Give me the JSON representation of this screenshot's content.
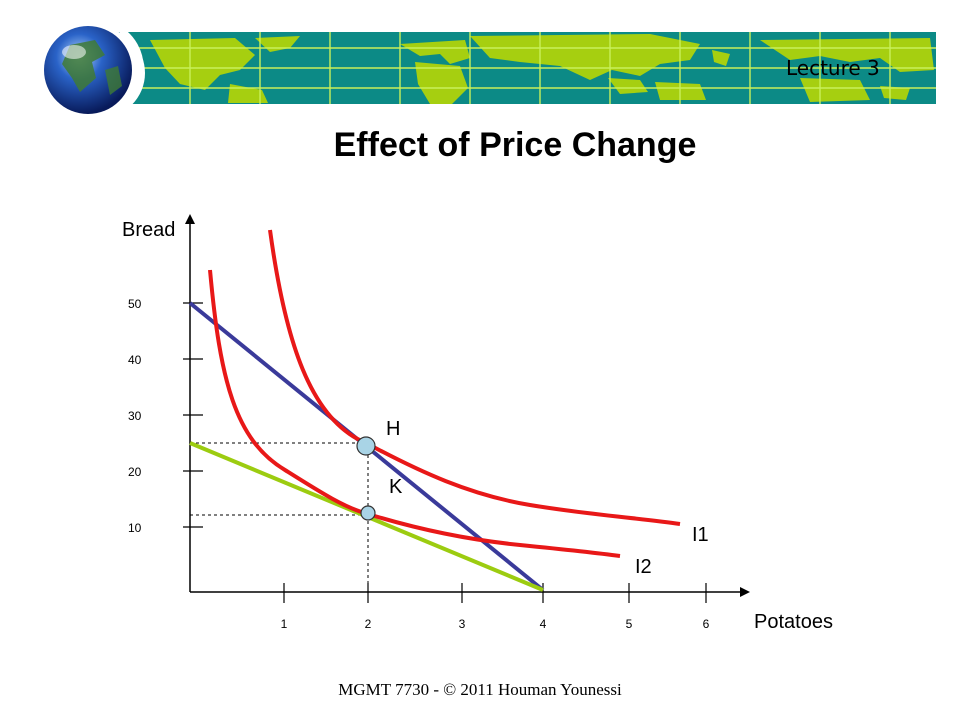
{
  "header": {
    "lecture_label": "Lecture 3",
    "colors": {
      "map_ocean": "#0c8a86",
      "map_land": "#a6cf10",
      "map_grid": "#c8f05a"
    }
  },
  "slide": {
    "title": "Effect of Price Change"
  },
  "diagram": {
    "axes": {
      "y_label": "Bread",
      "x_label": "Potatoes",
      "y_ticks": [
        "10",
        "20",
        "30",
        "40",
        "50"
      ],
      "x_ticks": [
        "1",
        "2",
        "3",
        "4",
        "5",
        "6"
      ]
    },
    "points": {
      "h_label": "H",
      "k_label": "K"
    },
    "curves": {
      "i1_label": "I1",
      "i2_label": "I2"
    },
    "colors": {
      "indifference_curves": "#e81818",
      "budget_line_original": "#3a3a9a",
      "budget_line_new": "#9ccc10",
      "points": "#a9d4e6"
    }
  },
  "footer": {
    "text": "MGMT 7730 - © 2011 Houman Younessi"
  }
}
